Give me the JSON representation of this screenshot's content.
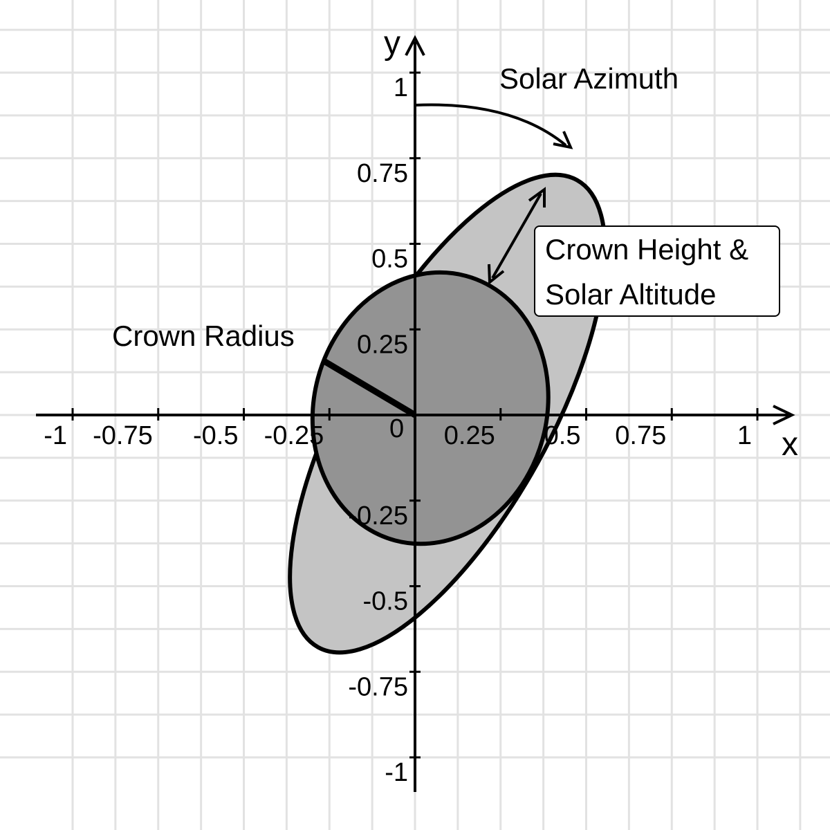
{
  "axes": {
    "x_name": "x",
    "y_name": "y",
    "x_ticks": [
      {
        "value": -1,
        "label": "-1"
      },
      {
        "value": -0.75,
        "label": "-0.75"
      },
      {
        "value": -0.5,
        "label": "-0.5"
      },
      {
        "value": -0.25,
        "label": "-0.25"
      },
      {
        "value": 0.25,
        "label": "0.25"
      },
      {
        "value": 0.5,
        "label": "0.5"
      },
      {
        "value": 0.75,
        "label": "0.75"
      },
      {
        "value": 1,
        "label": "1"
      }
    ],
    "y_ticks": [
      {
        "value": 1,
        "label": "1"
      },
      {
        "value": 0.75,
        "label": "0.75"
      },
      {
        "value": 0.5,
        "label": "0.5"
      },
      {
        "value": 0.25,
        "label": "0.25"
      },
      {
        "value": -0.25,
        "label": "-0.25"
      },
      {
        "value": -0.5,
        "label": "-0.5"
      },
      {
        "value": -0.75,
        "label": "-0.75"
      },
      {
        "value": -1,
        "label": "-1"
      }
    ],
    "origin_label": "0",
    "xlim": [
      -1.1,
      1.1
    ],
    "ylim": [
      -1.1,
      1.1
    ]
  },
  "shapes": {
    "outer_ellipse": {
      "center": [
        0.095,
        0.004
      ],
      "semi_major": 0.78,
      "semi_minor": 0.3,
      "angle_deg": 61,
      "fill": "#c4c4c4"
    },
    "inner_ellipse": {
      "center": [
        0.045,
        0.02
      ],
      "semi_major": 0.4,
      "semi_minor": 0.34,
      "angle_deg": 75,
      "fill": "#939393"
    },
    "crown_radius": {
      "from": [
        0,
        0
      ],
      "to": [
        -0.27,
        0.16
      ]
    }
  },
  "annotations": {
    "solar_azimuth": "Solar Azimuth",
    "crown_radius": "Crown Radius",
    "crown_height_line1": "Crown Height &",
    "crown_height_line2": "Solar Altitude"
  }
}
